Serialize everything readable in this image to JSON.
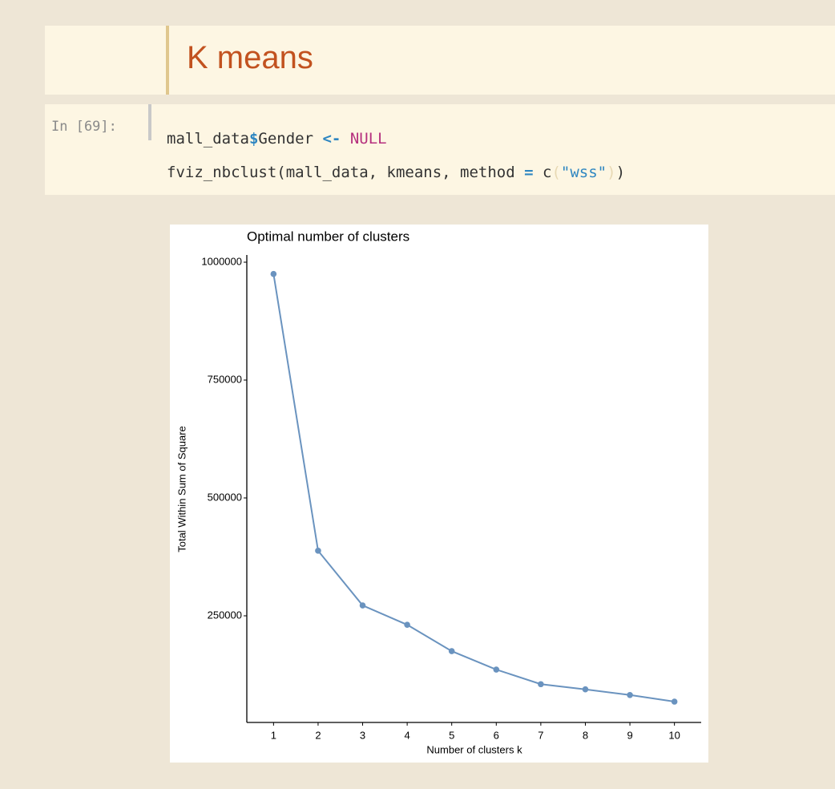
{
  "markdown_cell": {
    "heading": "K means"
  },
  "code_cell": {
    "prompt": "In [69]:",
    "lines": [
      [
        {
          "text": "mall_data",
          "color": "#333333"
        },
        {
          "text": "$",
          "color": "#2e86c1",
          "bold": true
        },
        {
          "text": "Gender ",
          "color": "#333333"
        },
        {
          "text": "<-",
          "color": "#2e86c1",
          "bold": true
        },
        {
          "text": " NULL",
          "color": "#b5307e"
        }
      ],
      [
        {
          "text": "fviz_nbclust(mall_data, kmeans, method ",
          "color": "#333333"
        },
        {
          "text": "=",
          "color": "#2e86c1",
          "bold": true
        },
        {
          "text": " c",
          "color": "#333333"
        },
        {
          "text": "(",
          "color": "#e8d9b4"
        },
        {
          "text": "\"wss\"",
          "color": "#2e86c1"
        },
        {
          "text": ")",
          "color": "#e8d9b4"
        },
        {
          "text": ")",
          "color": "#333333"
        }
      ]
    ]
  },
  "chart_data": {
    "type": "line",
    "title": "Optimal number of clusters",
    "x_label": "Number of clusters k",
    "y_label": "Total Within Sum of Square",
    "x": [
      1,
      2,
      3,
      4,
      5,
      6,
      7,
      8,
      9,
      10
    ],
    "series": [
      {
        "color": "#6a93bf",
        "values": [
          975000,
          388000,
          272000,
          231000,
          175000,
          136000,
          105000,
          94000,
          82000,
          68000
        ]
      }
    ],
    "xlim": [
      0.4,
      10.6
    ],
    "xticks": [
      1,
      2,
      3,
      4,
      5,
      6,
      7,
      8,
      9,
      10
    ],
    "ylim": [
      23800,
      1015300
    ],
    "yticks": [
      250000,
      500000,
      750000,
      1000000
    ],
    "grid": false,
    "markers": true
  }
}
